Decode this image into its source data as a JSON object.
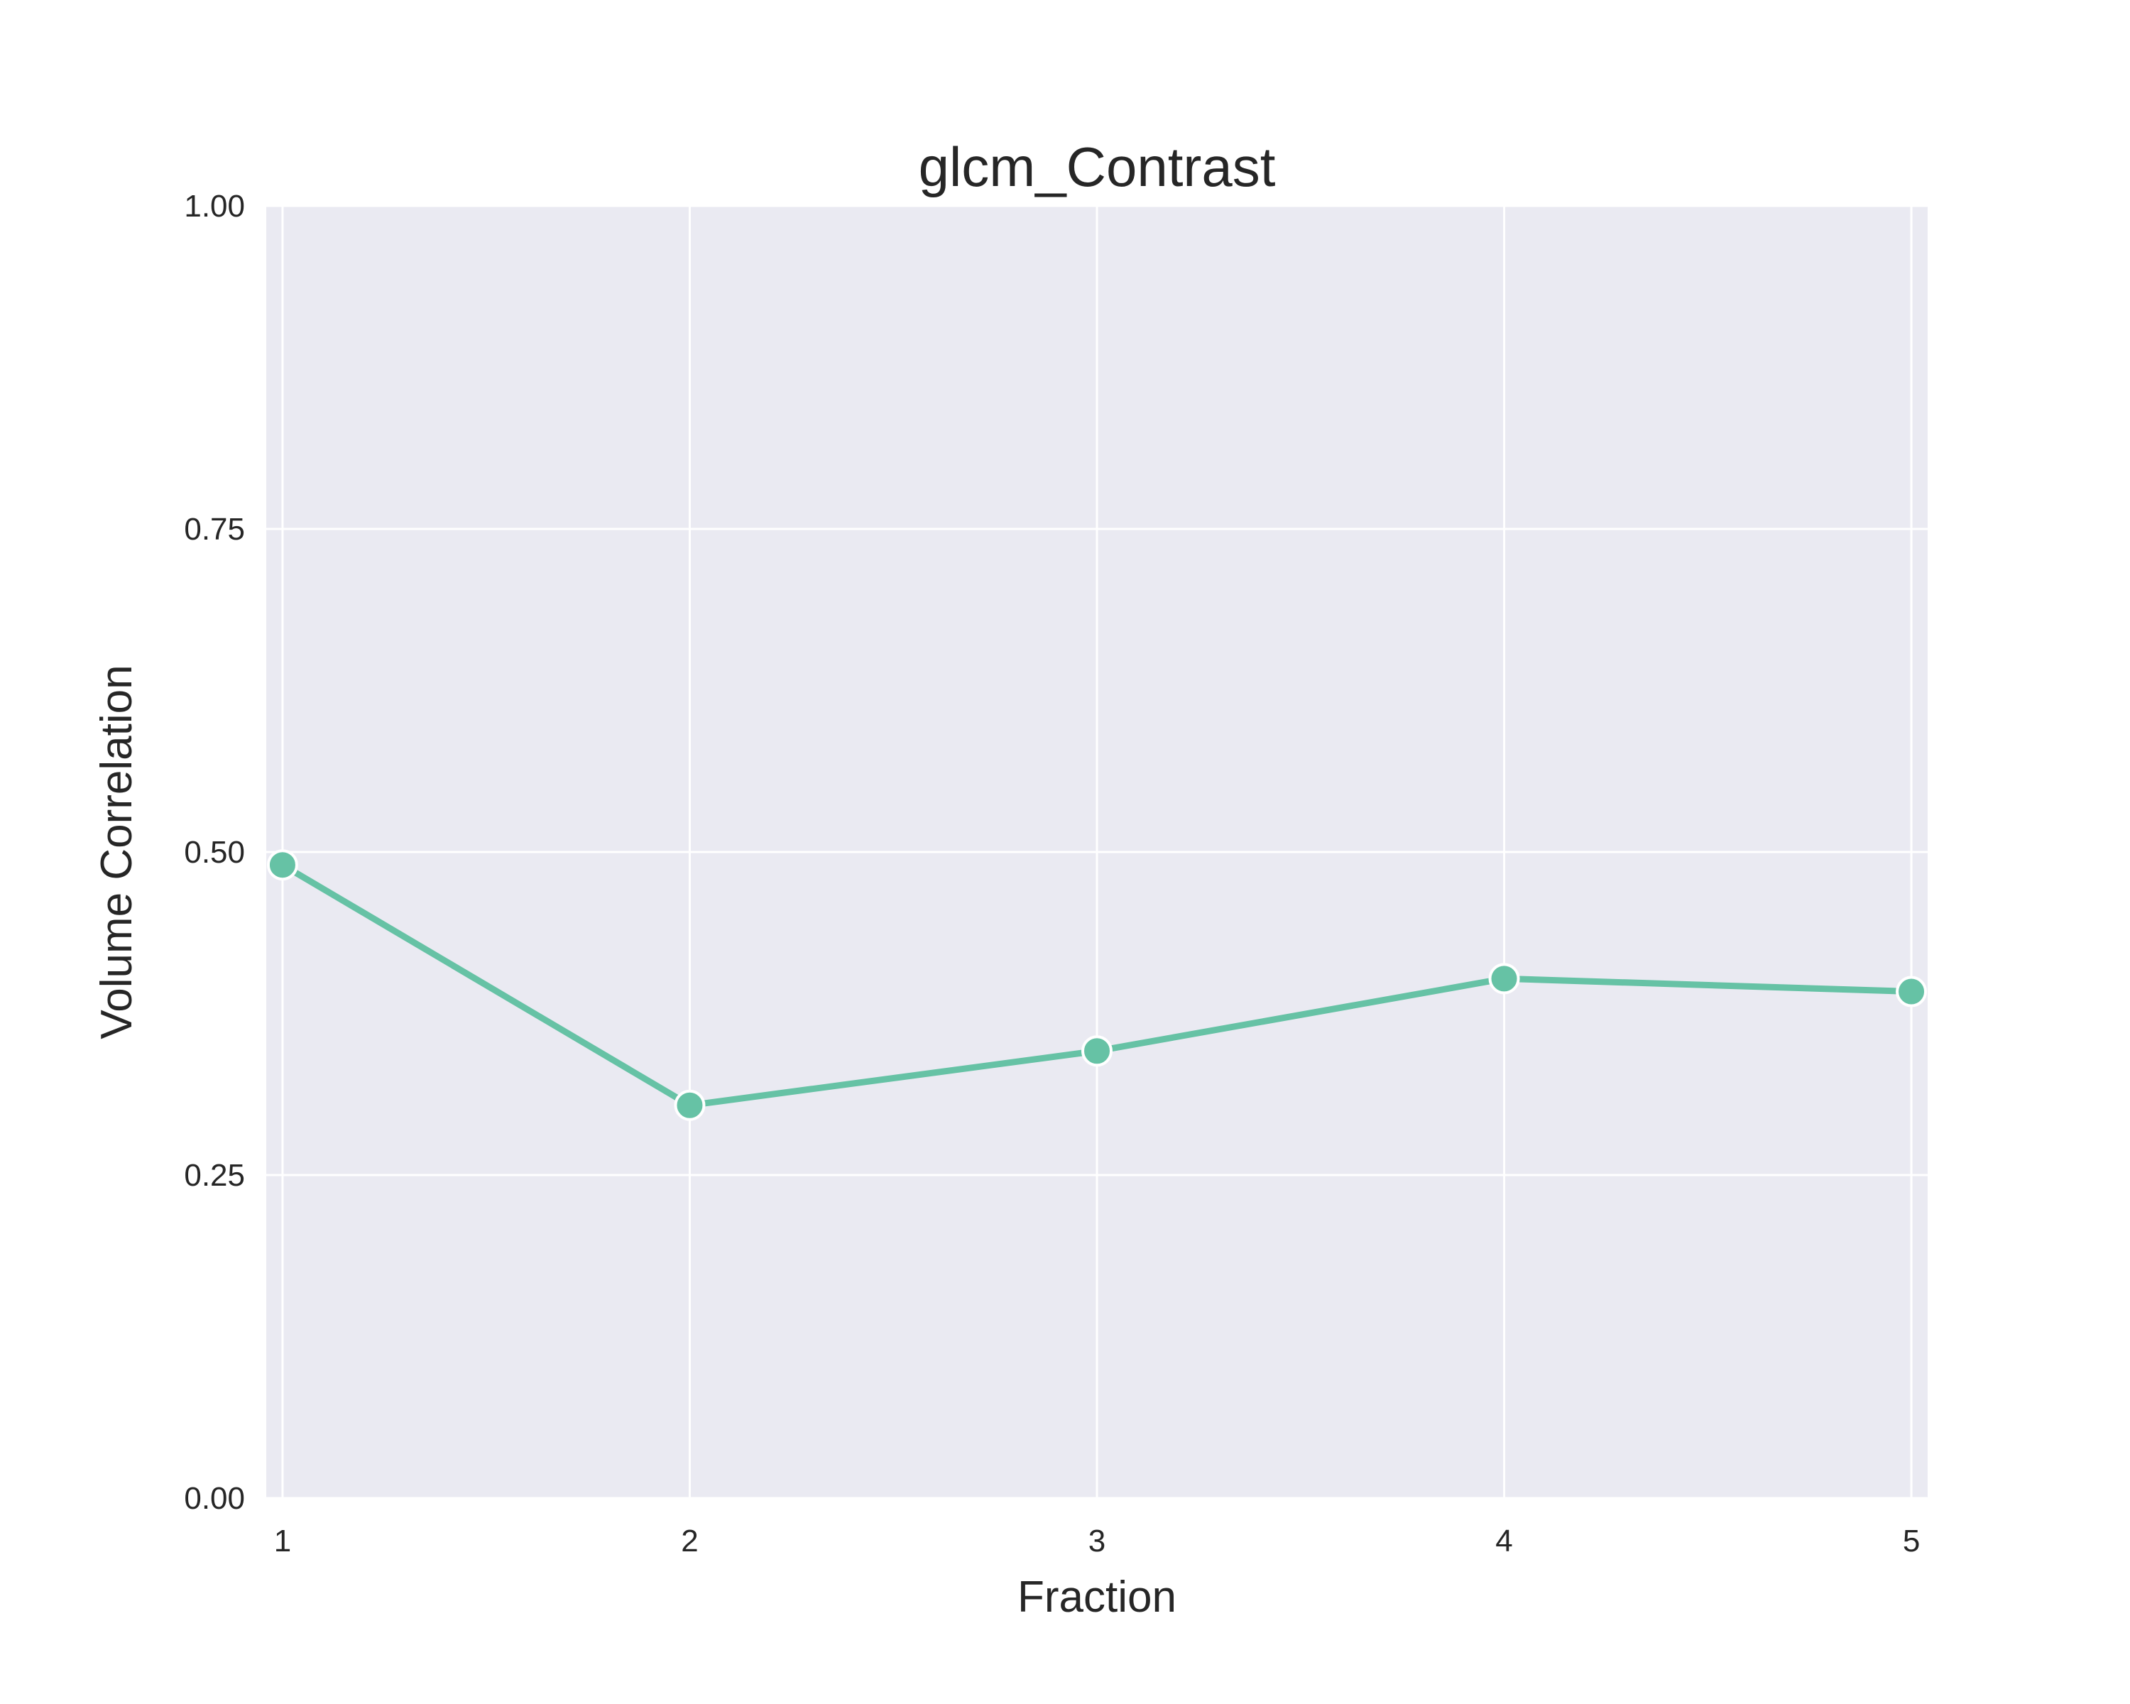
{
  "chart_data": {
    "type": "line",
    "title": "glcm_Contrast",
    "xlabel": "Fraction",
    "ylabel": "Volume Correlation",
    "x": [
      1,
      2,
      3,
      4,
      5
    ],
    "series": [
      {
        "values": [
          0.49,
          0.304,
          0.346,
          0.402,
          0.392
        ]
      }
    ],
    "xticks": [
      "1",
      "2",
      "3",
      "4",
      "5"
    ],
    "yticks": [
      "0.00",
      "0.25",
      "0.50",
      "0.75",
      "1.00"
    ],
    "ytick_values": [
      0,
      0.25,
      0.5,
      0.75,
      1.0
    ],
    "xlim": [
      0.96,
      5.04
    ],
    "ylim": [
      0,
      1.0
    ],
    "grid": true,
    "colors": {
      "plot_background": "#EAEAF2",
      "grid": "#FFFFFF",
      "line": "#66C2A5",
      "text": "#262626"
    }
  }
}
